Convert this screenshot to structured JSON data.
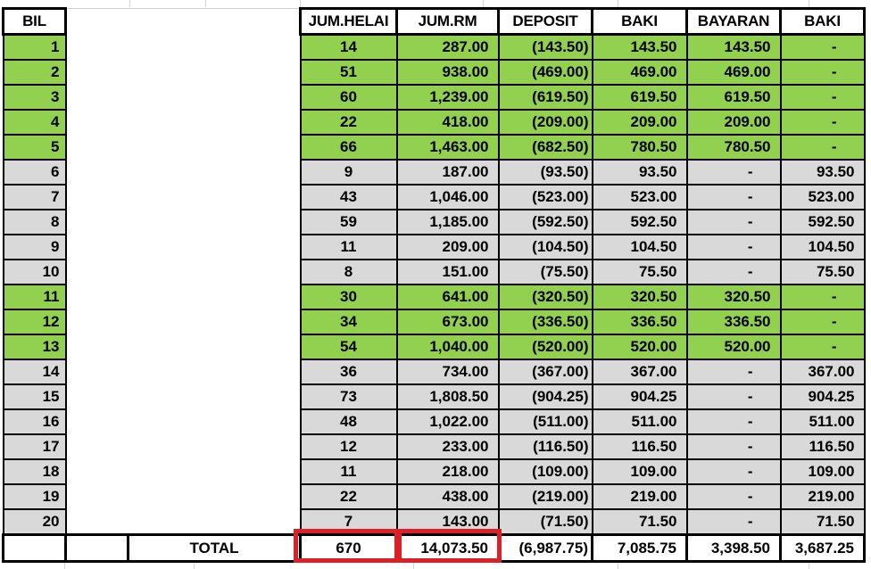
{
  "table": {
    "headers": [
      "BIL",
      "JUM.HELAI",
      "JUM.RM",
      "DEPOSIT",
      "BAKI",
      "BAYARAN",
      "BAKI"
    ],
    "rows": [
      {
        "bil": "1",
        "helai": "14",
        "rm": "287.00",
        "deposit": "(143.50)",
        "baki": "143.50",
        "bayaran": "143.50",
        "baki2": "-",
        "highlight": true
      },
      {
        "bil": "2",
        "helai": "51",
        "rm": "938.00",
        "deposit": "(469.00)",
        "baki": "469.00",
        "bayaran": "469.00",
        "baki2": "-",
        "highlight": true
      },
      {
        "bil": "3",
        "helai": "60",
        "rm": "1,239.00",
        "deposit": "(619.50)",
        "baki": "619.50",
        "bayaran": "619.50",
        "baki2": "-",
        "highlight": true
      },
      {
        "bil": "4",
        "helai": "22",
        "rm": "418.00",
        "deposit": "(209.00)",
        "baki": "209.00",
        "bayaran": "209.00",
        "baki2": "-",
        "highlight": true
      },
      {
        "bil": "5",
        "helai": "66",
        "rm": "1,463.00",
        "deposit": "(682.50)",
        "baki": "780.50",
        "bayaran": "780.50",
        "baki2": "-",
        "highlight": true
      },
      {
        "bil": "6",
        "helai": "9",
        "rm": "187.00",
        "deposit": "(93.50)",
        "baki": "93.50",
        "bayaran": "-",
        "baki2": "93.50",
        "highlight": false
      },
      {
        "bil": "7",
        "helai": "43",
        "rm": "1,046.00",
        "deposit": "(523.00)",
        "baki": "523.00",
        "bayaran": "-",
        "baki2": "523.00",
        "highlight": false
      },
      {
        "bil": "8",
        "helai": "59",
        "rm": "1,185.00",
        "deposit": "(592.50)",
        "baki": "592.50",
        "bayaran": "-",
        "baki2": "592.50",
        "highlight": false
      },
      {
        "bil": "9",
        "helai": "11",
        "rm": "209.00",
        "deposit": "(104.50)",
        "baki": "104.50",
        "bayaran": "-",
        "baki2": "104.50",
        "highlight": false
      },
      {
        "bil": "10",
        "helai": "8",
        "rm": "151.00",
        "deposit": "(75.50)",
        "baki": "75.50",
        "bayaran": "-",
        "baki2": "75.50",
        "highlight": false
      },
      {
        "bil": "11",
        "helai": "30",
        "rm": "641.00",
        "deposit": "(320.50)",
        "baki": "320.50",
        "bayaran": "320.50",
        "baki2": "-",
        "highlight": true
      },
      {
        "bil": "12",
        "helai": "34",
        "rm": "673.00",
        "deposit": "(336.50)",
        "baki": "336.50",
        "bayaran": "336.50",
        "baki2": "-",
        "highlight": true
      },
      {
        "bil": "13",
        "helai": "54",
        "rm": "1,040.00",
        "deposit": "(520.00)",
        "baki": "520.00",
        "bayaran": "520.00",
        "baki2": "-",
        "highlight": true
      },
      {
        "bil": "14",
        "helai": "36",
        "rm": "734.00",
        "deposit": "(367.00)",
        "baki": "367.00",
        "bayaran": "-",
        "baki2": "367.00",
        "highlight": false
      },
      {
        "bil": "15",
        "helai": "73",
        "rm": "1,808.50",
        "deposit": "(904.25)",
        "baki": "904.25",
        "bayaran": "-",
        "baki2": "904.25",
        "highlight": false
      },
      {
        "bil": "16",
        "helai": "48",
        "rm": "1,022.00",
        "deposit": "(511.00)",
        "baki": "511.00",
        "bayaran": "-",
        "baki2": "511.00",
        "highlight": false
      },
      {
        "bil": "17",
        "helai": "12",
        "rm": "233.00",
        "deposit": "(116.50)",
        "baki": "116.50",
        "bayaran": "-",
        "baki2": "116.50",
        "highlight": false
      },
      {
        "bil": "18",
        "helai": "11",
        "rm": "218.00",
        "deposit": "(109.00)",
        "baki": "109.00",
        "bayaran": "-",
        "baki2": "109.00",
        "highlight": false
      },
      {
        "bil": "19",
        "helai": "22",
        "rm": "438.00",
        "deposit": "(219.00)",
        "baki": "219.00",
        "bayaran": "-",
        "baki2": "219.00",
        "highlight": false
      },
      {
        "bil": "20",
        "helai": "7",
        "rm": "143.00",
        "deposit": "(71.50)",
        "baki": "71.50",
        "bayaran": "-",
        "baki2": "71.50",
        "highlight": false
      }
    ],
    "total": {
      "label": "TOTAL",
      "helai": "670",
      "rm": "14,073.50",
      "deposit": "(6,987.75)",
      "baki": "7,085.75",
      "bayaran": "3,398.50",
      "baki2": "3,687.25"
    }
  },
  "colors": {
    "row_highlight": "#92d050",
    "row_normal": "#d9d9d9",
    "annotation_red": "#dd2025",
    "border": "#000000"
  }
}
